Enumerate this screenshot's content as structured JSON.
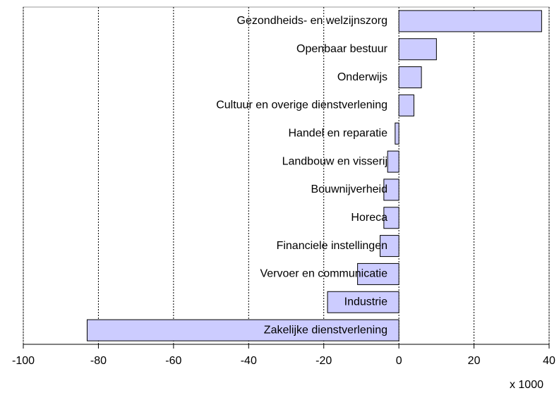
{
  "chart_data": {
    "type": "hbar",
    "categories": [
      "Gezondheids- en welzijnszorg",
      "Openbaar bestuur",
      "Onderwijs",
      "Cultuur en overige dienstverlening",
      "Handel en reparatie",
      "Landbouw en visserij",
      "Bouwnijverheid",
      "Horeca",
      "Financiele instellingen",
      "Vervoer en communicatie",
      "Industrie",
      "Zakelijke dienstverlening"
    ],
    "values": [
      38,
      10,
      6,
      4,
      -1,
      -3,
      -4,
      -4,
      -5,
      -11,
      -19,
      -83
    ],
    "color": "#ccccff",
    "xlim": [
      -100,
      40
    ],
    "xticks": [
      -100,
      -80,
      -60,
      -40,
      -20,
      0,
      20,
      40
    ],
    "xlabel": "x 1000",
    "grid": true
  }
}
